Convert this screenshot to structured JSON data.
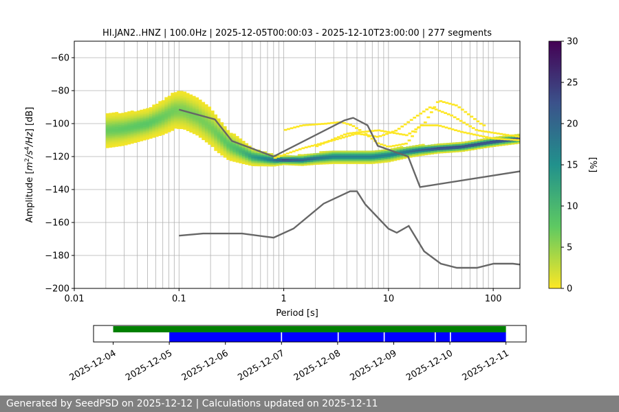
{
  "chart_data": [
    {
      "type": "heatmap",
      "title": "HI.JAN2..HNZ | 100.0Hz | 2025-12-05T00:00:03 - 2025-12-10T23:00:00 | 277 segments",
      "xlabel": "Period [s]",
      "ylabel_prefix": "Amplitude [",
      "ylabel_suffix": "] [dB]",
      "x_scale": "log",
      "xlim": [
        0.01,
        180
      ],
      "ylim": [
        -200,
        -50
      ],
      "x_tick_labels": [
        "0.01",
        "0.1",
        "1",
        "10",
        "100"
      ],
      "x_tick_values": [
        0.01,
        0.1,
        1,
        10,
        100
      ],
      "y_ticks": [
        -200,
        -180,
        -160,
        -140,
        -120,
        -100,
        -80,
        -60
      ],
      "grid": true,
      "colorbar": {
        "label": "[%]",
        "range": [
          0,
          30
        ],
        "ticks": [
          0,
          5,
          10,
          15,
          20,
          25,
          30
        ],
        "colormap": [
          "#fde725",
          "#5ec962",
          "#21918c",
          "#3b528b",
          "#440154"
        ]
      },
      "ppsd_mode": {
        "period": [
          0.02,
          0.03,
          0.05,
          0.07,
          0.09,
          0.11,
          0.15,
          0.2,
          0.3,
          0.5,
          0.8,
          1.0,
          1.5,
          2,
          3,
          5,
          7,
          10,
          15,
          20,
          30,
          50,
          100,
          180
        ],
        "db": [
          -104,
          -103,
          -100,
          -96,
          -92,
          -92,
          -96,
          -102,
          -113,
          -120,
          -122,
          -122,
          -122,
          -121,
          -120,
          -120,
          -120,
          -119,
          -117,
          -116,
          -115,
          -114,
          -111,
          -109
        ]
      },
      "ppsd_band_halfwidth_db": {
        "period": [
          0.02,
          0.05,
          0.1,
          0.2,
          0.5,
          1,
          3,
          10,
          30,
          180
        ],
        "db": [
          8,
          7,
          9,
          9,
          4,
          2,
          3,
          3,
          2,
          2
        ]
      },
      "outlier_curves": [
        {
          "period": [
            1.0,
            1.5,
            2.5,
            3.5,
            4.5,
            6,
            8,
            10,
            15,
            20,
            30,
            50,
            100,
            180
          ],
          "db": [
            -104,
            -101,
            -100,
            -99,
            -101,
            -106,
            -112,
            -114,
            -112,
            -101,
            -101,
            -105,
            -109,
            -110
          ]
        },
        {
          "period": [
            0.8,
            1.5,
            3,
            5,
            8,
            12,
            18,
            25,
            40,
            70,
            180
          ],
          "db": [
            -121,
            -115,
            -110,
            -106,
            -108,
            -104,
            -96,
            -90,
            -95,
            -104,
            -108
          ]
        },
        {
          "period": [
            2,
            4,
            8,
            15,
            22,
            30,
            45,
            80
          ],
          "db": [
            -114,
            -106,
            -104,
            -107,
            -100,
            -86,
            -89,
            -101
          ]
        }
      ],
      "noise_models": [
        {
          "name": "high",
          "period": [
            0.1,
            0.22,
            0.32,
            0.8,
            3.8,
            4.6,
            6.3,
            7.9,
            15.4,
            20,
            354.8
          ],
          "db": [
            -91.5,
            -97.4,
            -110.5,
            -120,
            -98,
            -96.5,
            -101,
            -113.5,
            -120,
            -138.5,
            -126
          ]
        },
        {
          "name": "low",
          "period": [
            0.1,
            0.17,
            0.4,
            0.8,
            1.24,
            2.4,
            4.3,
            5.0,
            6.0,
            10.0,
            12.0,
            15.6,
            21.9,
            31.6,
            45,
            70,
            101,
            154,
            328
          ],
          "db": [
            -168,
            -166.7,
            -166.7,
            -169.2,
            -163.7,
            -148.6,
            -141.1,
            -141.1,
            -149,
            -163.8,
            -166.2,
            -162.1,
            -177.5,
            -185,
            -187.5,
            -187.5,
            -185,
            -185,
            -187.5
          ]
        }
      ]
    },
    {
      "type": "timeline",
      "date_ticks": [
        "2025-12-04",
        "2025-12-05",
        "2025-12-06",
        "2025-12-07",
        "2025-12-08",
        "2025-12-09",
        "2025-12-10",
        "2025-12-11"
      ],
      "xlim_days": [
        -0.35,
        7.36
      ],
      "available_data": {
        "color": "#008000",
        "spans": [
          [
            0.0,
            7.0
          ]
        ]
      },
      "used_segments": {
        "color": "#0000ff",
        "spans": [
          [
            1.0,
            2.99
          ],
          [
            3.01,
            4.0
          ],
          [
            4.02,
            4.82
          ],
          [
            4.84,
            5.73
          ],
          [
            5.75,
            6.0
          ],
          [
            6.02,
            7.0
          ]
        ]
      }
    }
  ],
  "footer": "Generated by SeedPSD on 2025-12-12 | Calculations updated on 2025-12-11"
}
